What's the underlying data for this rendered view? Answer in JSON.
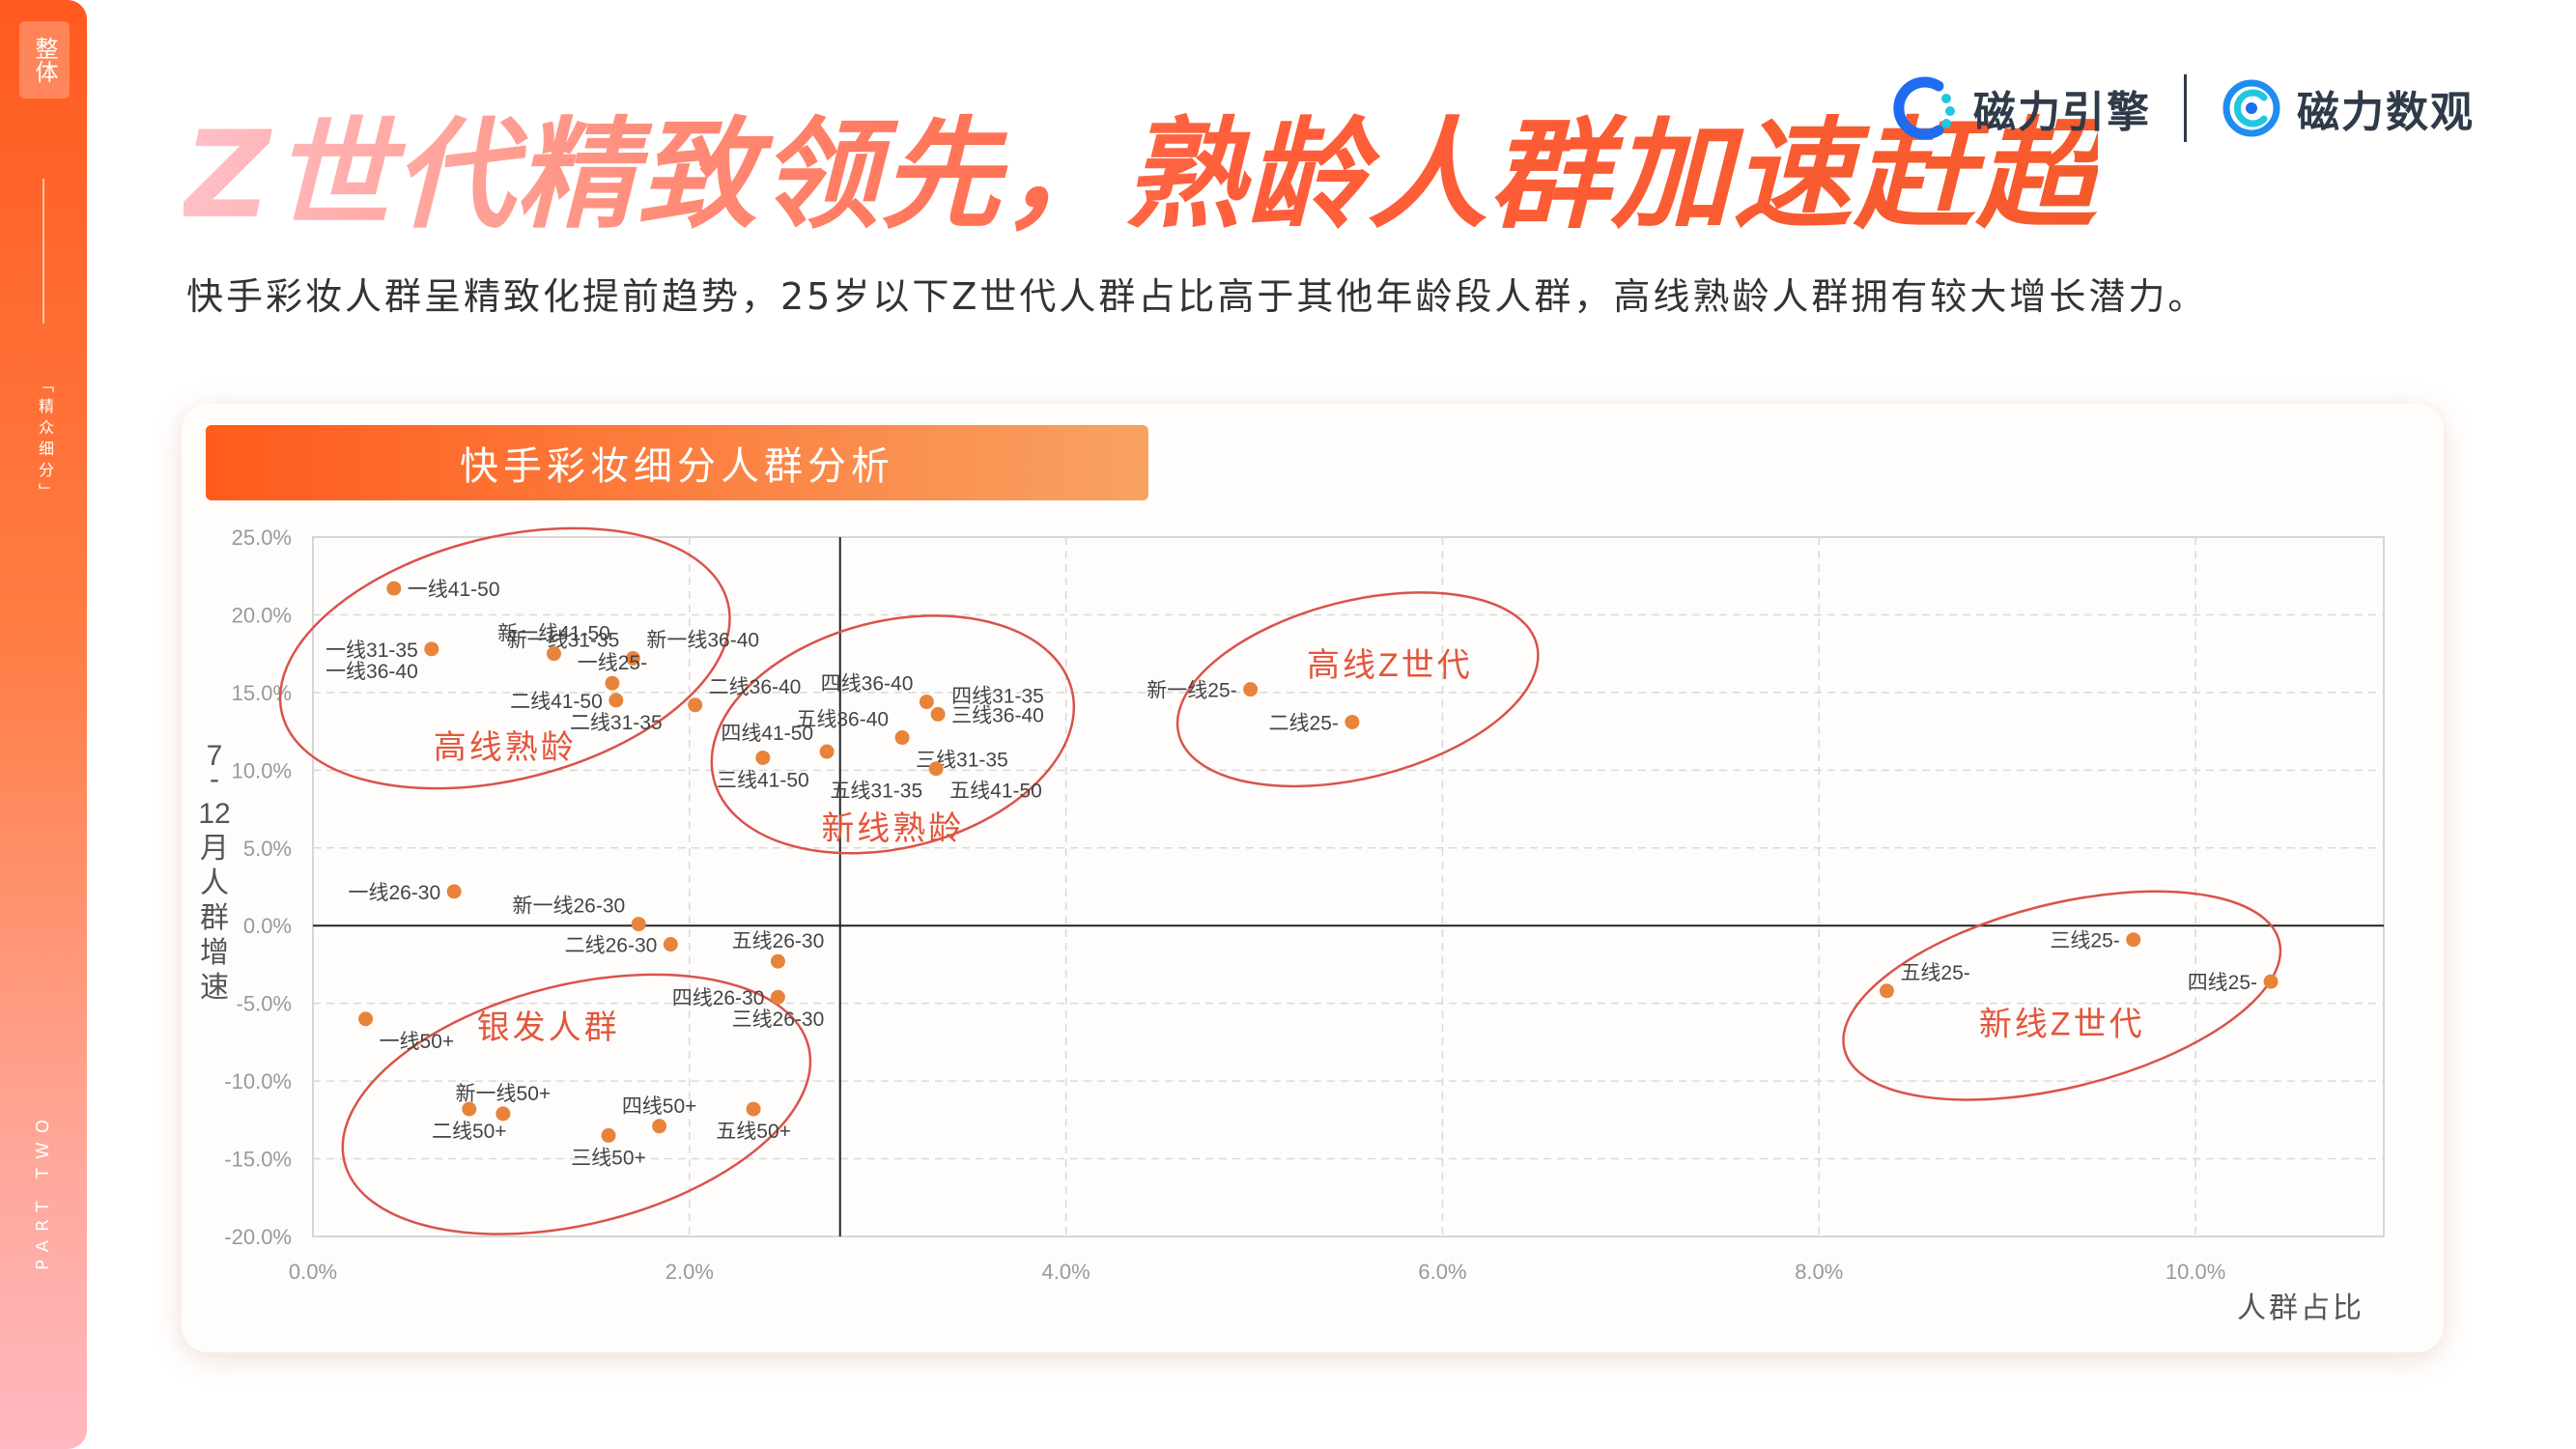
{
  "side": {
    "tag": "整体",
    "subtitle": "「精众细分」",
    "part": "PART TWO"
  },
  "headline": "Z世代精致领先，熟龄人群加速赶超",
  "logos": {
    "engine": "磁力引擎",
    "data": "磁力数观"
  },
  "subtitle": "快手彩妆人群呈精致化提前趋势，25岁以下Z世代人群占比高于其他年龄段人群，高线熟龄人群拥有较大增长潜力。",
  "card_title": "快手彩妆细分人群分析",
  "colors": {
    "accent": "#ff5b1c",
    "point": "#e8843a",
    "ellipse": "#d9534a",
    "group_label": "#e2563c"
  },
  "chart_data": {
    "type": "scatter",
    "xlabel": "人群占比",
    "ylabel": "7-12月人群增速",
    "xlim": [
      0,
      11
    ],
    "ylim": [
      -20,
      25
    ],
    "x_ticks": [
      "0.0%",
      "2.0%",
      "4.0%",
      "6.0%",
      "8.0%",
      "10.0%"
    ],
    "x_tick_values": [
      0,
      2,
      4,
      6,
      8,
      10
    ],
    "y_ticks": [
      "25.0%",
      "20.0%",
      "15.0%",
      "10.0%",
      "5.0%",
      "0.0%",
      "-5.0%",
      "-10.0%",
      "-15.0%",
      "-20.0%"
    ],
    "y_tick_values": [
      25,
      20,
      15,
      10,
      5,
      0,
      -5,
      -10,
      -15,
      -20
    ],
    "crosshair": {
      "x": 2.8,
      "y": 0
    },
    "points": [
      {
        "label": "一线41-50",
        "x": 0.43,
        "y": 21.7,
        "pos": "r"
      },
      {
        "label": "新一线31-35",
        "x": 1.7,
        "y": 17.2,
        "pos": "tl"
      },
      {
        "label": "新一线36-40",
        "x": 1.7,
        "y": 17.2,
        "pos": "tr"
      },
      {
        "label": "新一线41-50",
        "x": 1.28,
        "y": 17.5,
        "pos": "t"
      },
      {
        "label": "一线31-35",
        "x": 0.63,
        "y": 17.8,
        "pos": "l"
      },
      {
        "label": "一线36-40",
        "x": 0.63,
        "y": 17.8,
        "pos": "bl"
      },
      {
        "label": "一线25-",
        "x": 1.59,
        "y": 15.6,
        "pos": "t"
      },
      {
        "label": "二线36-40",
        "x": 2.03,
        "y": 14.2,
        "pos": "tr"
      },
      {
        "label": "二线41-50",
        "x": 1.61,
        "y": 14.5,
        "pos": "l"
      },
      {
        "label": "二线31-35",
        "x": 1.61,
        "y": 14.5,
        "pos": "b"
      },
      {
        "label": "四线36-40",
        "x": 3.26,
        "y": 14.4,
        "pos": "tl"
      },
      {
        "label": "四线31-35",
        "x": 3.32,
        "y": 13.6,
        "pos": "tr"
      },
      {
        "label": "三线36-40",
        "x": 3.32,
        "y": 13.6,
        "pos": "r"
      },
      {
        "label": "五线36-40",
        "x": 3.13,
        "y": 12.1,
        "pos": "tl"
      },
      {
        "label": "三线31-35",
        "x": 3.13,
        "y": 12.1,
        "pos": "br"
      },
      {
        "label": "四线41-50",
        "x": 2.73,
        "y": 11.2,
        "pos": "tl"
      },
      {
        "label": "三线41-50",
        "x": 2.39,
        "y": 10.8,
        "pos": "b"
      },
      {
        "label": "五线31-35",
        "x": 3.31,
        "y": 10.1,
        "pos": "bl"
      },
      {
        "label": "五线41-50",
        "x": 3.31,
        "y": 10.1,
        "pos": "br"
      },
      {
        "label": "新一线25-",
        "x": 4.98,
        "y": 15.2,
        "pos": "l"
      },
      {
        "label": "二线25-",
        "x": 5.52,
        "y": 13.1,
        "pos": "l"
      },
      {
        "label": "一线26-30",
        "x": 0.75,
        "y": 2.2,
        "pos": "l"
      },
      {
        "label": "新一线26-30",
        "x": 1.73,
        "y": 0.1,
        "pos": "tl"
      },
      {
        "label": "二线26-30",
        "x": 1.9,
        "y": -1.2,
        "pos": "l"
      },
      {
        "label": "五线26-30",
        "x": 2.47,
        "y": -2.3,
        "pos": "t"
      },
      {
        "label": "四线26-30",
        "x": 2.47,
        "y": -4.6,
        "pos": "l"
      },
      {
        "label": "三线26-30",
        "x": 2.47,
        "y": -4.6,
        "pos": "b"
      },
      {
        "label": "一线50+",
        "x": 0.28,
        "y": -6.0,
        "pos": "br"
      },
      {
        "label": "新一线50+",
        "x": 1.01,
        "y": -12.1,
        "pos": "t"
      },
      {
        "label": "二线50+",
        "x": 0.83,
        "y": -11.8,
        "pos": "b"
      },
      {
        "label": "三线50+",
        "x": 1.57,
        "y": -13.5,
        "pos": "b"
      },
      {
        "label": "四线50+",
        "x": 1.84,
        "y": -12.9,
        "pos": "t"
      },
      {
        "label": "五线50+",
        "x": 2.34,
        "y": -11.8,
        "pos": "b"
      },
      {
        "label": "三线25-",
        "x": 9.67,
        "y": -0.9,
        "pos": "l"
      },
      {
        "label": "五线25-",
        "x": 8.36,
        "y": -4.2,
        "pos": "tr"
      },
      {
        "label": "四线25-",
        "x": 10.4,
        "y": -3.6,
        "pos": "l"
      }
    ],
    "groups": [
      {
        "label": "高线熟龄",
        "cx": 1.02,
        "cy": 17.2,
        "rx": 1.22,
        "ry": 7.8,
        "lx": 1.02,
        "ly": 11.5
      },
      {
        "label": "新线熟龄",
        "cx": 3.08,
        "cy": 12.3,
        "rx": 0.98,
        "ry": 7.3,
        "lx": 3.08,
        "ly": 6.3
      },
      {
        "label": "高线Z世代",
        "cx": 5.55,
        "cy": 15.2,
        "rx": 0.98,
        "ry": 5.7,
        "lx": 5.72,
        "ly": 16.8
      },
      {
        "label": "银发人群",
        "cx": 1.4,
        "cy": -11.5,
        "rx": 1.27,
        "ry": 7.7,
        "lx": 1.25,
        "ly": -6.5
      },
      {
        "label": "新线Z世代",
        "cx": 9.29,
        "cy": -4.5,
        "rx": 1.19,
        "ry": 5.9,
        "lx": 9.29,
        "ly": -6.3
      }
    ]
  }
}
